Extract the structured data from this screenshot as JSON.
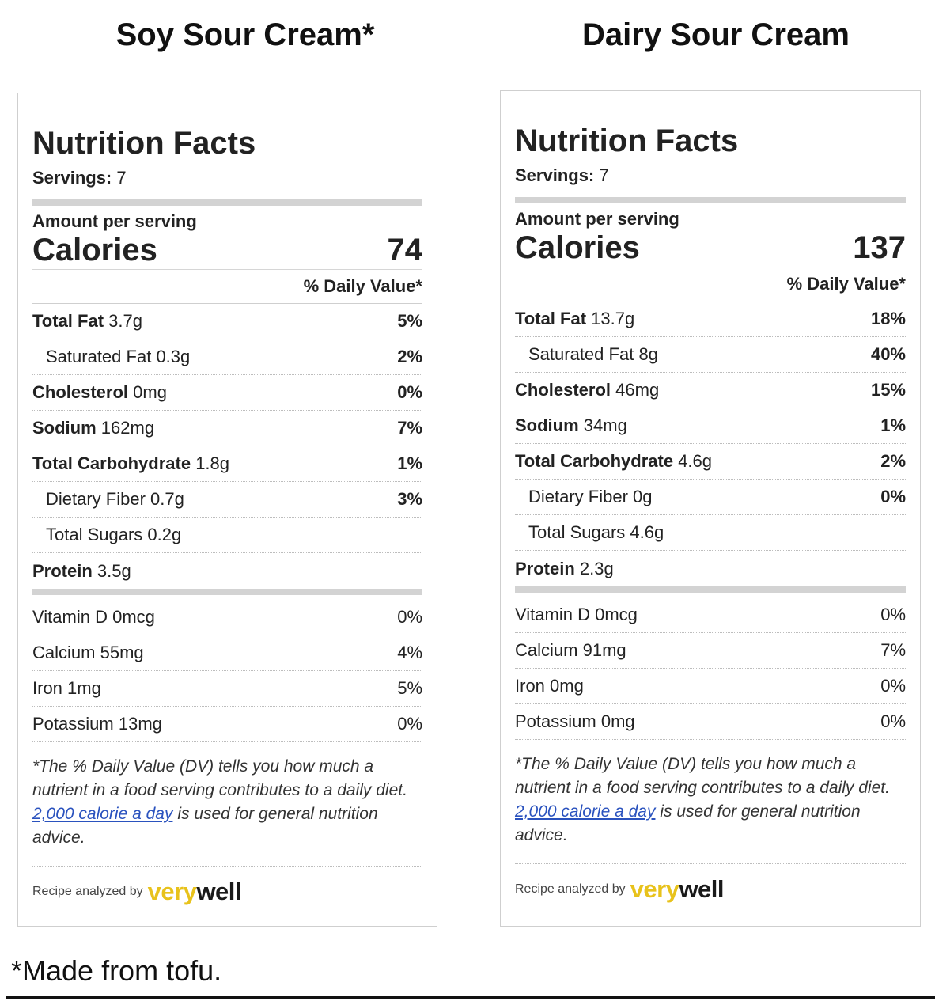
{
  "titles": {
    "left": "Soy Sour Cream*",
    "right": "Dairy Sour Cream"
  },
  "footnote": "*Made from tofu.",
  "panels": [
    {
      "heading": "Nutrition Facts",
      "servings_label": "Servings:",
      "servings_value": "7",
      "amount_label": "Amount per serving",
      "calories_label": "Calories",
      "calories_value": "74",
      "dv_label": "% Daily Value*",
      "nutrients": [
        {
          "name": "Total Fat",
          "amount": "3.7g",
          "pct": "5%"
        },
        {
          "name": "Saturated Fat",
          "amount": "0.3g",
          "pct": "2%"
        },
        {
          "name": "Cholesterol",
          "amount": "0mg",
          "pct": "0%"
        },
        {
          "name": "Sodium",
          "amount": "162mg",
          "pct": "7%"
        },
        {
          "name": "Total Carbohydrate",
          "amount": "1.8g",
          "pct": "1%"
        },
        {
          "name": "Dietary Fiber",
          "amount": "0.7g",
          "pct": "3%"
        },
        {
          "name": "Total Sugars",
          "amount": "0.2g",
          "pct": ""
        },
        {
          "name": "Protein",
          "amount": "3.5g",
          "pct": ""
        }
      ],
      "vitamins": [
        {
          "name": "Vitamin D",
          "amount": "0mcg",
          "pct": "0%"
        },
        {
          "name": "Calcium",
          "amount": "55mg",
          "pct": "4%"
        },
        {
          "name": "Iron",
          "amount": "1mg",
          "pct": "5%"
        },
        {
          "name": "Potassium",
          "amount": "13mg",
          "pct": "0%"
        }
      ],
      "footer_text_1": "*The % Daily Value (DV) tells you how much a nutrient in a food serving contributes to a daily diet.",
      "footer_link": "2,000 calorie a day",
      "footer_text_2": "is used for general nutrition advice.",
      "analyzed_label": "Recipe analyzed by",
      "logo_very": "very",
      "logo_well": "well"
    },
    {
      "heading": "Nutrition Facts",
      "servings_label": "Servings:",
      "servings_value": "7",
      "amount_label": "Amount per serving",
      "calories_label": "Calories",
      "calories_value": "137",
      "dv_label": "% Daily Value*",
      "nutrients": [
        {
          "name": "Total Fat",
          "amount": "13.7g",
          "pct": "18%"
        },
        {
          "name": "Saturated Fat",
          "amount": "8g",
          "pct": "40%"
        },
        {
          "name": "Cholesterol",
          "amount": "46mg",
          "pct": "15%"
        },
        {
          "name": "Sodium",
          "amount": "34mg",
          "pct": "1%"
        },
        {
          "name": "Total Carbohydrate",
          "amount": "4.6g",
          "pct": "2%"
        },
        {
          "name": "Dietary Fiber",
          "amount": "0g",
          "pct": "0%"
        },
        {
          "name": "Total Sugars",
          "amount": "4.6g",
          "pct": ""
        },
        {
          "name": "Protein",
          "amount": "2.3g",
          "pct": ""
        }
      ],
      "vitamins": [
        {
          "name": "Vitamin D",
          "amount": "0mcg",
          "pct": "0%"
        },
        {
          "name": "Calcium",
          "amount": "91mg",
          "pct": "7%"
        },
        {
          "name": "Iron",
          "amount": "0mg",
          "pct": "0%"
        },
        {
          "name": "Potassium",
          "amount": "0mg",
          "pct": "0%"
        }
      ],
      "footer_text_1": "*The % Daily Value (DV) tells you how much a nutrient in a food serving contributes to a daily diet.",
      "footer_link": "2,000 calorie a day",
      "footer_text_2": "is used for general nutrition advice.",
      "analyzed_label": "Recipe analyzed by",
      "logo_very": "very",
      "logo_well": "well"
    }
  ],
  "colors": {
    "link": "#2a52be",
    "logo_very": "#e8c21b",
    "bar": "#d3d3d3"
  }
}
